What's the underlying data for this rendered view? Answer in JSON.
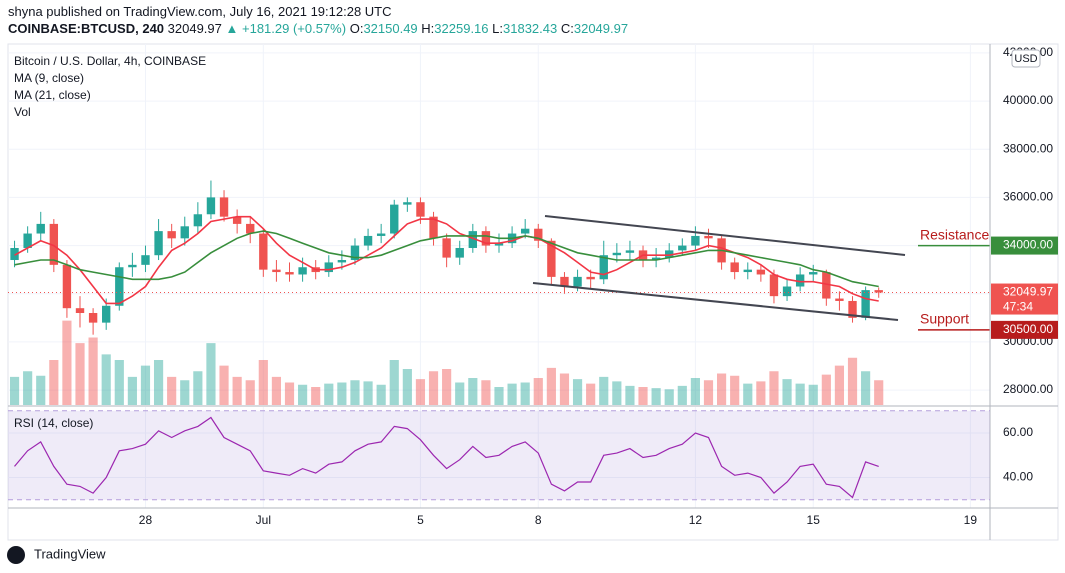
{
  "header": {
    "byline": "shyna published on TradingView.com, July 16, 2021 19:12:28 UTC",
    "symbol": "COINBASE:BTCUSD, 240",
    "last": "32049.97",
    "change": "▲ +181.29 (+0.57%)",
    "ohlc": [
      [
        "O:",
        "32150.49"
      ],
      [
        "H:",
        "32259.16"
      ],
      [
        "L:",
        "31832.43"
      ],
      [
        "C:",
        "32049.97"
      ]
    ]
  },
  "brand": "TradingView",
  "chart_data": {
    "type": "candlestick",
    "title": "Bitcoin / U.S. Dollar, 4h, COINBASE",
    "currency": "USD",
    "up_color": "#26a69a",
    "down_color": "#ef5350",
    "grid": true,
    "categories": [
      null,
      null,
      null,
      null,
      null,
      null,
      null,
      null,
      null,
      null,
      "28",
      null,
      null,
      null,
      null,
      null,
      null,
      null,
      null,
      "Jul",
      null,
      null,
      null,
      null,
      null,
      null,
      null,
      null,
      null,
      null,
      null,
      "5",
      null,
      null,
      null,
      null,
      null,
      null,
      null,
      null,
      "8",
      null,
      null,
      null,
      null,
      null,
      null,
      null,
      null,
      null,
      null,
      null,
      "12",
      null,
      null,
      null,
      null,
      null,
      null,
      null,
      null,
      "15",
      null,
      null,
      null,
      null,
      null,
      null,
      null,
      null,
      null,
      null,
      null,
      "19",
      null
    ],
    "open": [
      33400,
      33900,
      34500,
      34900,
      33200,
      31400,
      31200,
      30800,
      31500,
      33100,
      33200,
      33600,
      34600,
      34300,
      34800,
      35300,
      36000,
      35200,
      34900,
      34500,
      33000,
      32900,
      32800,
      33100,
      32900,
      33300,
      33400,
      34000,
      34400,
      34500,
      35700,
      35800,
      35200,
      34300,
      33500,
      33900,
      34600,
      34000,
      34100,
      34500,
      34700,
      34200,
      32700,
      32300,
      32700,
      32600,
      33600,
      33700,
      33800,
      33400,
      33500,
      33800,
      34000,
      34400,
      34300,
      33300,
      32900,
      33000,
      32800,
      31900,
      32300,
      32800,
      32900,
      31800,
      31700,
      31000,
      32150.49,
      null,
      null,
      null,
      null,
      null,
      null,
      null,
      null
    ],
    "high": [
      34200,
      34800,
      35400,
      35100,
      33400,
      31900,
      31400,
      31800,
      33300,
      33700,
      34000,
      35100,
      34900,
      35200,
      35800,
      36700,
      36300,
      35500,
      35200,
      34700,
      33400,
      33300,
      33500,
      33400,
      33600,
      33800,
      34300,
      34700,
      34900,
      35900,
      36000,
      36000,
      35400,
      34500,
      34200,
      34900,
      34800,
      34500,
      34800,
      35100,
      34900,
      34300,
      32900,
      33000,
      33000,
      34200,
      34100,
      34200,
      34000,
      33900,
      34100,
      34300,
      34800,
      34700,
      34400,
      33500,
      33300,
      33200,
      33000,
      32600,
      33100,
      33200,
      33000,
      32100,
      31900,
      32300,
      32259.16,
      null,
      null,
      null,
      null,
      null,
      null,
      null,
      null
    ],
    "low": [
      33100,
      33700,
      34200,
      32900,
      31000,
      30600,
      30300,
      30500,
      31300,
      32700,
      32900,
      33400,
      33900,
      34000,
      34500,
      35100,
      35000,
      34500,
      34100,
      32700,
      32500,
      32500,
      32500,
      32600,
      32700,
      33000,
      33200,
      33800,
      34100,
      34300,
      35400,
      34900,
      34000,
      33100,
      33200,
      33700,
      33700,
      33700,
      33900,
      34300,
      33900,
      32400,
      32000,
      32100,
      32200,
      32400,
      33300,
      33400,
      33100,
      33100,
      33300,
      33600,
      33800,
      33900,
      33000,
      32600,
      32600,
      32500,
      31600,
      31700,
      32100,
      32500,
      31500,
      31300,
      30800,
      30900,
      31832.43,
      null,
      null,
      null,
      null,
      null,
      null,
      null,
      null
    ],
    "close": [
      33900,
      34500,
      34900,
      33200,
      31400,
      31200,
      30800,
      31500,
      33100,
      33200,
      33600,
      34600,
      34300,
      34800,
      35300,
      36000,
      35200,
      34900,
      34500,
      33000,
      32900,
      32800,
      33100,
      32900,
      33300,
      33400,
      34000,
      34400,
      34500,
      35700,
      35800,
      35200,
      34300,
      33500,
      33900,
      34600,
      34000,
      34100,
      34500,
      34700,
      34200,
      32700,
      32300,
      32700,
      32600,
      33600,
      33700,
      33800,
      33400,
      33500,
      33800,
      34000,
      34400,
      34300,
      33300,
      32900,
      33000,
      32800,
      31900,
      32300,
      32800,
      32900,
      31800,
      31700,
      31000,
      32150,
      32049.97,
      null,
      null,
      null,
      null,
      null,
      null,
      null,
      null
    ],
    "countdown": "47:34",
    "ma": [
      {
        "name": "MA (9, close)",
        "color": "#f23645",
        "values": [
          33600,
          33900,
          34200,
          34000,
          33600,
          33000,
          32300,
          31600,
          31600,
          31900,
          32300,
          33100,
          33800,
          34100,
          34500,
          35000,
          35100,
          35200,
          35200,
          34700,
          34100,
          33600,
          33300,
          33000,
          33000,
          33100,
          33300,
          33600,
          33900,
          34400,
          34900,
          35100,
          35100,
          34900,
          34500,
          34300,
          34100,
          34100,
          34200,
          34400,
          34300,
          34000,
          33700,
          33300,
          32900,
          32800,
          33000,
          33300,
          33600,
          33600,
          33600,
          33700,
          33800,
          34000,
          33900,
          33700,
          33500,
          33200,
          32800,
          32600,
          32500,
          32500,
          32400,
          32300,
          32000,
          31800,
          31700,
          null,
          null,
          null,
          null,
          null,
          null,
          null,
          null
        ]
      },
      {
        "name": "MA (21, close)",
        "color": "#388e3c",
        "values": [
          33200,
          33300,
          33400,
          33400,
          33200,
          33000,
          32900,
          32800,
          32700,
          32600,
          32600,
          32600,
          32700,
          32900,
          33300,
          33700,
          34000,
          34300,
          34500,
          34600,
          34500,
          34300,
          34100,
          33900,
          33700,
          33600,
          33500,
          33500,
          33600,
          33800,
          34000,
          34200,
          34300,
          34400,
          34400,
          34400,
          34400,
          34300,
          34300,
          34400,
          34300,
          34100,
          33900,
          33700,
          33600,
          33500,
          33400,
          33400,
          33400,
          33400,
          33500,
          33600,
          33700,
          33800,
          33800,
          33700,
          33600,
          33500,
          33400,
          33300,
          33200,
          33000,
          32900,
          32700,
          32500,
          32400,
          32300,
          null,
          null,
          null,
          null,
          null,
          null,
          null,
          null
        ]
      }
    ],
    "volume": {
      "name": "Vol",
      "ylim": [
        0,
        8000
      ],
      "values": [
        2500,
        3000,
        2600,
        4000,
        7500,
        5500,
        6000,
        4500,
        4000,
        2500,
        3500,
        4000,
        2500,
        2200,
        3000,
        5500,
        3500,
        2500,
        2200,
        4000,
        2500,
        2000,
        1800,
        1600,
        1900,
        2000,
        2200,
        2100,
        1800,
        4000,
        3200,
        2300,
        3000,
        3200,
        2000,
        2400,
        2200,
        1600,
        1900,
        2000,
        2400,
        3300,
        2800,
        2300,
        1900,
        2500,
        2100,
        1700,
        1600,
        1500,
        1400,
        1700,
        2400,
        2200,
        2800,
        2600,
        1900,
        2100,
        3000,
        2300,
        1900,
        1800,
        2700,
        3500,
        4200,
        3000,
        2200,
        null,
        null,
        null,
        null,
        null,
        null,
        null,
        null
      ]
    },
    "ylim": [
      27380,
      42370
    ],
    "yticks": [
      {
        "value": 28000,
        "label": "28000.00"
      },
      {
        "value": 30000,
        "label": "30000.00"
      },
      {
        "value": 32000,
        "label": "32000.00"
      },
      {
        "value": 34000,
        "label": "34000.00"
      },
      {
        "value": 36000,
        "label": "36000.00"
      },
      {
        "value": 38000,
        "label": "38000.00"
      },
      {
        "value": 40000,
        "label": "40000.00"
      },
      {
        "value": 42000,
        "label": "42000.00"
      }
    ],
    "levels": [
      {
        "text": "Resistance",
        "value": 34000,
        "label": "34000.00",
        "color": "#388e3c",
        "text_color": "#b71c1c"
      },
      {
        "text": "Support",
        "value": 30500,
        "label": "30500.00",
        "color": "#b71c1c",
        "text_color": "#b71c1c"
      }
    ],
    "rsi": {
      "name": "RSI (14, close)",
      "color": "#9c27b0",
      "ylim": [
        26.3,
        71.7
      ],
      "bands": [
        30,
        70
      ],
      "yticks": [
        {
          "value": 40,
          "label": "40.00"
        },
        {
          "value": 60,
          "label": "60.00"
        }
      ],
      "values": [
        45,
        52,
        56,
        45,
        37,
        36,
        33,
        40,
        52,
        53,
        55,
        61,
        58,
        61,
        63,
        67,
        58,
        55,
        52,
        43,
        42,
        41,
        44,
        42,
        46,
        47,
        52,
        55,
        56,
        63,
        62,
        57,
        50,
        44,
        48,
        54,
        49,
        50,
        54,
        56,
        51,
        37,
        34,
        38,
        38,
        50,
        51,
        53,
        49,
        50,
        53,
        55,
        60,
        58,
        45,
        41,
        42,
        40,
        33,
        38,
        45,
        46,
        37,
        36,
        31,
        47,
        45,
        null,
        null,
        null,
        null,
        null,
        null,
        null,
        null
      ]
    }
  }
}
